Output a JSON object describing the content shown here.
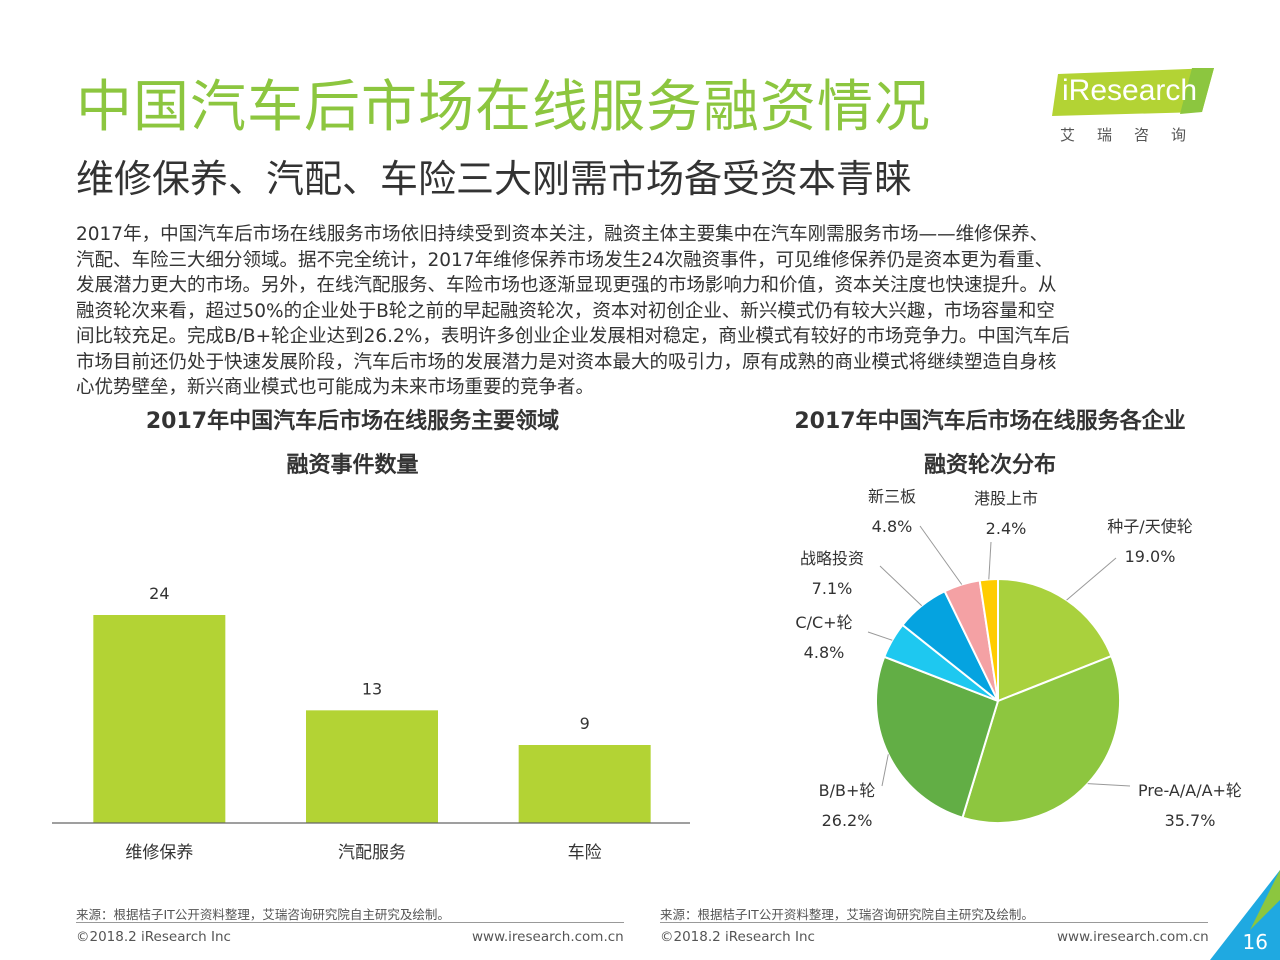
{
  "header": {
    "title": "中国汽车后市场在线服务融资情况",
    "subtitle": "维修保养、汽配、车险三大刚需市场备受资本青睐"
  },
  "logo": {
    "brand": "iResearch",
    "cn": "艾瑞咨询"
  },
  "body": {
    "lines": [
      "2017年，中国汽车后市场在线服务市场依旧持续受到资本关注，融资主体主要集中在汽车刚需服务市场——维修保养、",
      "汽配、车险三大细分领域。据不完全统计，2017年维修保养市场发生24次融资事件，可见维修保养仍是资本更为看重、",
      "发展潜力更大的市场。另外，在线汽配服务、车险市场也逐渐显现更强的市场影响力和价值，资本关注度也快速提升。从",
      "融资轮次来看，超过50%的企业处于B轮之前的早起融资轮次，资本对初创企业、新兴模式仍有较大兴趣，市场容量和空",
      "间比较充足。完成B/B+轮企业达到26.2%，表明许多创业企业发展相对稳定，商业模式有较好的市场竞争力。中国汽车后",
      "市场目前还仍处于快速发展阶段，汽车后市场的发展潜力是对资本最大的吸引力，原有成熟的商业模式将继续塑造自身核",
      "心优势壁垒，新兴商业模式也可能成为未来市场重要的竞争者。"
    ]
  },
  "colors": {
    "accent": "#8cc63f",
    "bar": "#b3d334",
    "brand_blue": "#1fa9e1"
  },
  "chart_data": [
    {
      "type": "bar",
      "title_line1": "2017年中国汽车后市场在线服务主要领域",
      "title_line2": "融资事件数量",
      "categories": [
        "维修保养",
        "汽配服务",
        "车险"
      ],
      "values": [
        24,
        13,
        9
      ],
      "ylim": [
        0,
        30
      ],
      "grid": false,
      "legend": "none"
    },
    {
      "type": "pie",
      "title_line1": "2017年中国汽车后市场在线服务各企业",
      "title_line2": "融资轮次分布",
      "slices": [
        {
          "label": "种子/天使轮",
          "value": 19.0,
          "value_label": "19.0%",
          "color": "#a9d13d"
        },
        {
          "label": "Pre-A/A/A+轮",
          "value": 35.7,
          "value_label": "35.7%",
          "color": "#8dc63f"
        },
        {
          "label": "B/B+轮",
          "value": 26.2,
          "value_label": "26.2%",
          "color": "#62ae45"
        },
        {
          "label": "C/C+轮",
          "value": 4.8,
          "value_label": "4.8%",
          "color": "#1ec8f0"
        },
        {
          "label": "战略投资",
          "value": 7.1,
          "value_label": "7.1%",
          "color": "#05a3e0"
        },
        {
          "label": "新三板",
          "value": 4.8,
          "value_label": "4.8%",
          "color": "#f4a1a4"
        },
        {
          "label": "港股上市",
          "value": 2.4,
          "value_label": "2.4%",
          "color": "#ffcc00"
        }
      ],
      "legend": "none"
    }
  ],
  "footer": {
    "source": "来源：根据桔子IT公开资料整理，艾瑞咨询研究院自主研究及绘制。",
    "copyright": "©2018.2 iResearch Inc",
    "url": "www.iresearch.com.cn",
    "page": "16"
  }
}
